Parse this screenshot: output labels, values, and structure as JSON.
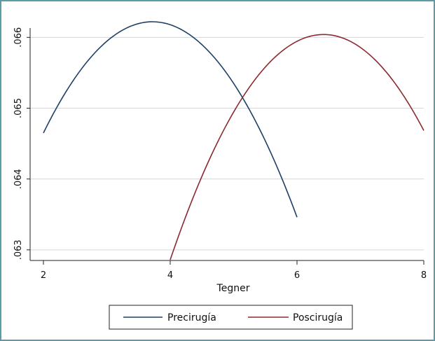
{
  "chart_data": {
    "type": "line",
    "title": "",
    "xlabel": "Tegner",
    "ylabel": "",
    "xlim": [
      2,
      8
    ],
    "ylim": [
      0.06285,
      0.06628
    ],
    "x_ticks": [
      2,
      4,
      6,
      8
    ],
    "y_ticks": [
      0.063,
      0.064,
      0.065,
      0.066
    ],
    "x_tick_labels": [
      "2",
      "4",
      "6",
      "8"
    ],
    "y_tick_labels": [
      ".063",
      ".064",
      ".065",
      ".066"
    ],
    "grid": true,
    "legend_position": "bottom",
    "series": [
      {
        "name": "Precirugía",
        "color": "#1e3f66",
        "curve": "quadratic",
        "vertex": [
          3.72,
          0.06622
        ],
        "x": [
          2,
          2.5,
          3,
          3.5,
          3.72,
          4,
          4.5,
          5,
          5.5,
          6
        ],
        "y": [
          0.06465,
          0.06548,
          0.06597,
          0.06618,
          0.06622,
          0.06619,
          0.0659,
          0.06528,
          0.06446,
          0.06341
        ]
      },
      {
        "name": "Poscirugía",
        "color": "#8b2a2f",
        "curve": "quadratic",
        "vertex": [
          6.42,
          0.06604
        ],
        "x": [
          4,
          4.5,
          5,
          5.5,
          6,
          6.42,
          7,
          7.5,
          8
        ],
        "y": [
          0.06286,
          0.0643,
          0.06523,
          0.06573,
          0.06598,
          0.06604,
          0.06588,
          0.06542,
          0.0647
        ]
      }
    ]
  }
}
